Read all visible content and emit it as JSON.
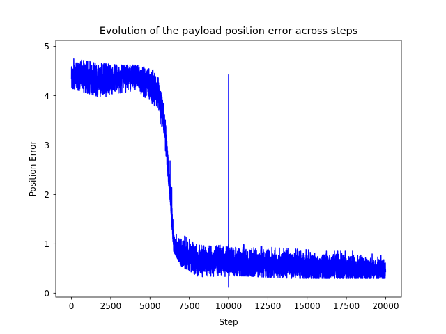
{
  "chart_data": {
    "type": "line",
    "title": "Evolution of the payload position error across steps",
    "xlabel": "Step",
    "ylabel": "Position Error",
    "xlim": [
      -1000,
      21000
    ],
    "ylim": [
      -0.08,
      5.12
    ],
    "xticks": [
      0,
      2500,
      5000,
      7500,
      10000,
      12500,
      15000,
      17500,
      20000
    ],
    "xtick_labels": [
      "0",
      "2500",
      "5000",
      "7500",
      "10000",
      "12500",
      "15000",
      "17500",
      "20000"
    ],
    "yticks": [
      0,
      1,
      2,
      3,
      4,
      5
    ],
    "ytick_labels": [
      "0",
      "1",
      "2",
      "3",
      "4",
      "5"
    ],
    "grid": false,
    "legend": "none",
    "series": [
      {
        "color": "#0000ff",
        "trend": {
          "x": [
            0,
            300,
            1000,
            2000,
            3000,
            4000,
            4500,
            5000,
            5500,
            5800,
            6000,
            6200,
            6400,
            6500,
            6600,
            7000,
            8000,
            9000,
            9990,
            10000,
            10010,
            11000,
            12000,
            13000,
            14000,
            15000,
            16000,
            17000,
            18000,
            19000,
            20000
          ],
          "y": [
            4.35,
            4.4,
            4.35,
            4.3,
            4.35,
            4.4,
            4.3,
            4.2,
            4.05,
            3.7,
            3.2,
            2.3,
            1.4,
            1.0,
            0.9,
            0.78,
            0.68,
            0.66,
            0.65,
            2.3,
            0.62,
            0.6,
            0.6,
            0.58,
            0.57,
            0.55,
            0.54,
            0.52,
            0.51,
            0.5,
            0.48
          ]
        },
        "band": {
          "x": [
            0,
            1000,
            2000,
            3000,
            4000,
            5000,
            5500,
            6000,
            6300,
            6500,
            7000,
            8000,
            9000,
            10000,
            11000,
            12000,
            13000,
            14000,
            15000,
            16000,
            17000,
            18000,
            19000,
            20000
          ],
          "y_min": [
            4.15,
            4.05,
            3.95,
            4.05,
            4.1,
            3.9,
            3.7,
            2.85,
            1.8,
            0.85,
            0.55,
            0.35,
            0.3,
            0.35,
            0.35,
            0.33,
            0.32,
            0.3,
            0.3,
            0.3,
            0.3,
            0.3,
            0.3,
            0.3
          ],
          "y_max": [
            4.75,
            4.7,
            4.65,
            4.62,
            4.62,
            4.6,
            4.4,
            3.6,
            2.6,
            1.5,
            1.2,
            0.98,
            0.95,
            1.0,
            0.98,
            0.95,
            0.92,
            0.9,
            0.88,
            0.85,
            0.85,
            0.85,
            0.8,
            0.75
          ]
        },
        "spike": {
          "x": 10000,
          "y_max": 4.42,
          "y_min": 0.12
        },
        "points": 20000
      }
    ]
  }
}
